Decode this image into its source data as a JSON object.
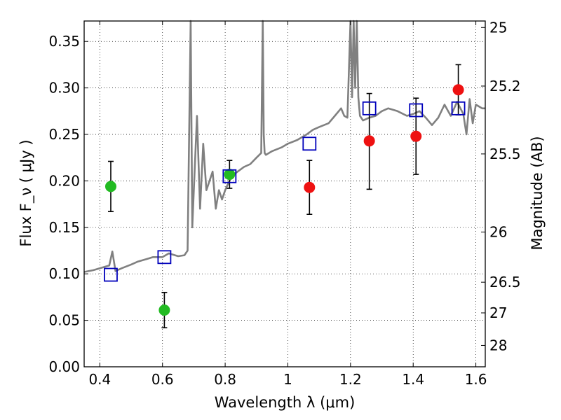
{
  "chart_data": {
    "type": "scatter",
    "xlabel": "Wavelength  λ (μm)",
    "ylabel": "Flux  F_ν  ( μJy )",
    "ylabel_right": "Magnitude (AB)",
    "xlim": [
      0.35,
      1.63
    ],
    "ylim": [
      0.0,
      0.372
    ],
    "grid": true,
    "x_ticks": [
      {
        "value": 0.4,
        "label": "0.4"
      },
      {
        "value": 0.6,
        "label": "0.6"
      },
      {
        "value": 0.8,
        "label": "0.8"
      },
      {
        "value": 1.0,
        "label": "1"
      },
      {
        "value": 1.2,
        "label": "1.2"
      },
      {
        "value": 1.4,
        "label": "1.4"
      },
      {
        "value": 1.6,
        "label": "1.6"
      }
    ],
    "y_ticks": [
      {
        "value": 0.0,
        "label": "0.00"
      },
      {
        "value": 0.05,
        "label": "0.05"
      },
      {
        "value": 0.1,
        "label": "0.10"
      },
      {
        "value": 0.15,
        "label": "0.15"
      },
      {
        "value": 0.2,
        "label": "0.20"
      },
      {
        "value": 0.25,
        "label": "0.25"
      },
      {
        "value": 0.3,
        "label": "0.30"
      },
      {
        "value": 0.35,
        "label": "0.35"
      }
    ],
    "right_ticks": [
      {
        "flux": 0.365,
        "label": "25"
      },
      {
        "flux": 0.302,
        "label": "25.2"
      },
      {
        "flux": 0.229,
        "label": "25.5"
      },
      {
        "flux": 0.145,
        "label": "26"
      },
      {
        "flux": 0.091,
        "label": "26.5"
      },
      {
        "flux": 0.058,
        "label": "27"
      },
      {
        "flux": 0.023,
        "label": "28"
      }
    ],
    "series": [
      {
        "marker": "circle",
        "color": "#22bb22",
        "points": [
          {
            "x": 0.435,
            "y": 0.194,
            "err_low": 0.167,
            "err_high": 0.221
          },
          {
            "x": 0.606,
            "y": 0.061,
            "err_low": 0.042,
            "err_high": 0.08
          },
          {
            "x": 0.814,
            "y": 0.207,
            "err_low": 0.192,
            "err_high": 0.222
          }
        ]
      },
      {
        "marker": "circle",
        "color": "#ee1111",
        "points": [
          {
            "x": 1.069,
            "y": 0.193,
            "err_low": 0.164,
            "err_high": 0.222
          },
          {
            "x": 1.26,
            "y": 0.243,
            "err_low": 0.191,
            "err_high": 0.294
          },
          {
            "x": 1.409,
            "y": 0.248,
            "err_low": 0.207,
            "err_high": 0.289
          },
          {
            "x": 1.544,
            "y": 0.298,
            "err_low": 0.271,
            "err_high": 0.325
          }
        ]
      },
      {
        "marker": "open-square",
        "color": "#0000bb",
        "points": [
          {
            "x": 0.435,
            "y": 0.099
          },
          {
            "x": 0.606,
            "y": 0.118
          },
          {
            "x": 0.814,
            "y": 0.205
          },
          {
            "x": 1.069,
            "y": 0.24
          },
          {
            "x": 1.26,
            "y": 0.278
          },
          {
            "x": 1.409,
            "y": 0.276
          },
          {
            "x": 1.544,
            "y": 0.278
          }
        ]
      }
    ],
    "spectrum": {
      "color": "#808080",
      "x": [
        0.35,
        0.38,
        0.4,
        0.43,
        0.44,
        0.45,
        0.47,
        0.5,
        0.52,
        0.55,
        0.57,
        0.6,
        0.62,
        0.65,
        0.67,
        0.68,
        0.69,
        0.695,
        0.7,
        0.71,
        0.72,
        0.73,
        0.74,
        0.75,
        0.76,
        0.77,
        0.78,
        0.79,
        0.8,
        0.82,
        0.84,
        0.86,
        0.88,
        0.9,
        0.915,
        0.92,
        0.923,
        0.926,
        0.93,
        0.95,
        0.98,
        1.0,
        1.03,
        1.06,
        1.08,
        1.1,
        1.13,
        1.15,
        1.17,
        1.18,
        1.19,
        1.2,
        1.205,
        1.21,
        1.215,
        1.22,
        1.225,
        1.23,
        1.24,
        1.26,
        1.28,
        1.3,
        1.32,
        1.35,
        1.38,
        1.4,
        1.42,
        1.44,
        1.46,
        1.48,
        1.5,
        1.52,
        1.54,
        1.56,
        1.57,
        1.58,
        1.59,
        1.6,
        1.62,
        1.63
      ],
      "y": [
        0.102,
        0.104,
        0.106,
        0.109,
        0.124,
        0.103,
        0.106,
        0.11,
        0.113,
        0.116,
        0.118,
        0.118,
        0.122,
        0.119,
        0.12,
        0.125,
        0.372,
        0.15,
        0.19,
        0.27,
        0.17,
        0.24,
        0.19,
        0.2,
        0.21,
        0.17,
        0.19,
        0.18,
        0.19,
        0.205,
        0.21,
        0.215,
        0.218,
        0.225,
        0.23,
        0.372,
        0.25,
        0.23,
        0.228,
        0.232,
        0.236,
        0.24,
        0.244,
        0.25,
        0.255,
        0.258,
        0.262,
        0.27,
        0.278,
        0.27,
        0.268,
        0.372,
        0.29,
        0.372,
        0.3,
        0.372,
        0.29,
        0.27,
        0.265,
        0.268,
        0.27,
        0.275,
        0.278,
        0.275,
        0.27,
        0.272,
        0.275,
        0.268,
        0.26,
        0.268,
        0.282,
        0.27,
        0.285,
        0.272,
        0.25,
        0.288,
        0.262,
        0.282,
        0.278,
        0.278
      ]
    }
  }
}
